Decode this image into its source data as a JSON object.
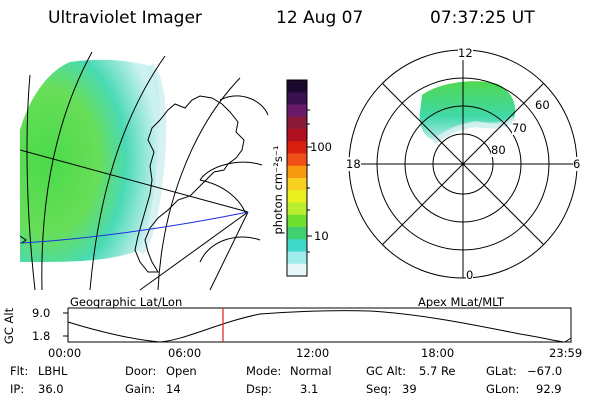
{
  "header": {
    "instrument": "Ultraviolet Imager",
    "date": "12 Aug 07",
    "time": "07:37:25 UT"
  },
  "colorbar": {
    "unit_label": "photon cm⁻²s⁻¹",
    "tick_100": "100",
    "tick_10": "10",
    "colors": [
      "#1b0a2e",
      "#3b1150",
      "#6a1a6a",
      "#8b1a3a",
      "#b01020",
      "#d82010",
      "#f05018",
      "#f89a10",
      "#f8d020",
      "#e8f020",
      "#b8f030",
      "#70e030",
      "#40d070",
      "#40d8c8",
      "#a0ecec",
      "#e8f8f8"
    ]
  },
  "geographic": {
    "label": "Geographic Lat/Lon"
  },
  "polar": {
    "label": "Apex MLat/MLT",
    "mlt_12": "12",
    "mlt_18": "18",
    "mlt_6": "6",
    "mlt_0": "0",
    "lat_60": "60",
    "lat_70": "70",
    "lat_80": "80"
  },
  "orbit_plot": {
    "ylabel": "GC Alt",
    "ytick_top": "9.0",
    "ytick_bottom": "1.8",
    "xticks": [
      "00:00",
      "06:00",
      "12:00",
      "18:00",
      "23:59"
    ],
    "current_time_marker_color": "#e02020"
  },
  "info": {
    "flt_label": "Flt:",
    "flt_value": "LBHL",
    "ip_label": "IP:",
    "ip_value": "36.0",
    "door_label": "Door:",
    "door_value": "Open",
    "gain_label": "Gain:",
    "gain_value": "14",
    "mode_label": "Mode:",
    "mode_value": "Normal",
    "dsp_label": "Dsp:",
    "dsp_value": "3.1",
    "gcalt_label": "GC Alt:",
    "gcalt_value": "5.7 Re",
    "seq_label": "Seq:",
    "seq_value": "39",
    "glat_label": "GLat:",
    "glat_value": "−67.0",
    "glon_label": "GLon:",
    "glon_value": "92.9"
  }
}
